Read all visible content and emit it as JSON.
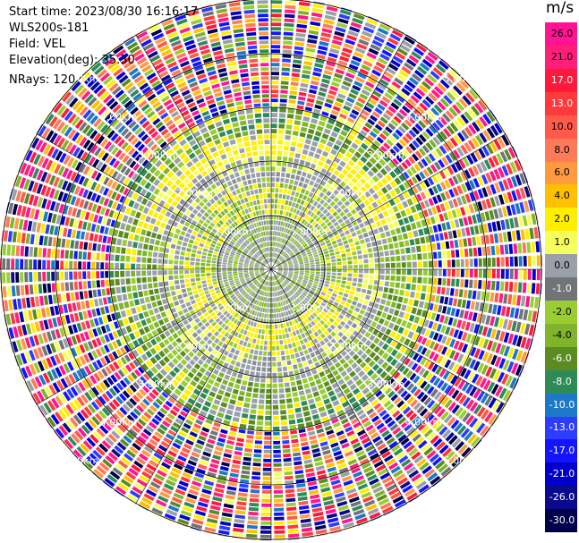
{
  "header": {
    "start_time": "Start time: 2023/08/30 16:16:17",
    "instrument": "WLS200s-181",
    "field": "Field: VEL",
    "elevation": "Elevation(deg): 35.30",
    "nrays": "NRays: 120"
  },
  "range_rings": {
    "labels": [
      "1.00km",
      "2.00km",
      "3.00km",
      "4.00km",
      "5.00km"
    ]
  },
  "colorbar": {
    "unit": "m/s",
    "tick_labels": [
      "26.0",
      "21.0",
      "17.0",
      "13.0",
      "10.0",
      "8.0",
      "6.0",
      "4.0",
      "2.0",
      "1.0",
      "0.0",
      "-1.0",
      "-2.0",
      "-4.0",
      "-6.0",
      "-8.0",
      "-10.0",
      "-13.0",
      "-17.0",
      "-21.0",
      "-26.0",
      "-30.0"
    ],
    "colors": [
      "#ff1493",
      "#ff1f78",
      "#ff1a3c",
      "#ff3a3a",
      "#ff5a4a",
      "#ff7a5a",
      "#ff9a40",
      "#ffc000",
      "#ffee00",
      "#f6ff5a",
      "#9aa0a8",
      "#707478",
      "#9acd32",
      "#7fb42c",
      "#5a8c22",
      "#2e8b57",
      "#1e78c8",
      "#2e3cff",
      "#1414ff",
      "#0000cd",
      "#0a0a8c",
      "#00004b"
    ]
  }
}
